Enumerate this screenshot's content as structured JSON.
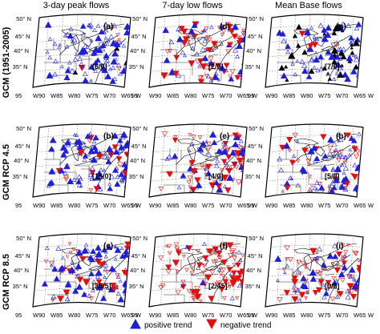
{
  "columns": [
    "3-day peak flows",
    "7-day low flows",
    "Mean Base flows"
  ],
  "rows": [
    "GCM (1951-2005)",
    "GCM RCP 4.5",
    "GCM RCP 8.5"
  ],
  "lat_labels": [
    "50° N",
    "45° N",
    "40° N",
    "35° N"
  ],
  "lon_labels": [
    "95",
    "W90",
    "W85",
    "W80",
    "W75",
    "W70",
    "W65",
    "W"
  ],
  "panels": [
    {
      "label": "(a)",
      "count": "[6/0]",
      "pos": 0.78,
      "neg": 0.08,
      "black": 0.02
    },
    {
      "label": "(d)",
      "count": "[2/0]",
      "pos": 0.25,
      "neg": 0.55,
      "black": 0.06
    },
    {
      "label": "(g)",
      "count": "[7/0]",
      "pos": 0.25,
      "neg": 0.05,
      "black": 0.25
    },
    {
      "label": "(b)",
      "count": "[15/0]",
      "pos": 0.72,
      "neg": 0.25,
      "black": 0.0
    },
    {
      "label": "(e)",
      "count": "[4/0]",
      "pos": 0.35,
      "neg": 0.55,
      "black": 0.0
    },
    {
      "label": "(h)",
      "count": "[5/0]",
      "pos": 0.45,
      "neg": 0.3,
      "black": 0.0
    },
    {
      "label": "(c)",
      "count": "[35/5]",
      "pos": 0.7,
      "neg": 0.28,
      "black": 0.0
    },
    {
      "label": "(f)",
      "count": "[2/45]",
      "pos": 0.1,
      "neg": 0.88,
      "black": 0.0
    },
    {
      "label": "(i)",
      "count": "[0/8]",
      "pos": 0.4,
      "neg": 0.5,
      "black": 0.0
    }
  ],
  "legend": {
    "positive": "positive trend",
    "negative": "negative trend",
    "positive_color": "#1f1fd6",
    "negative_color": "#e01010"
  }
}
